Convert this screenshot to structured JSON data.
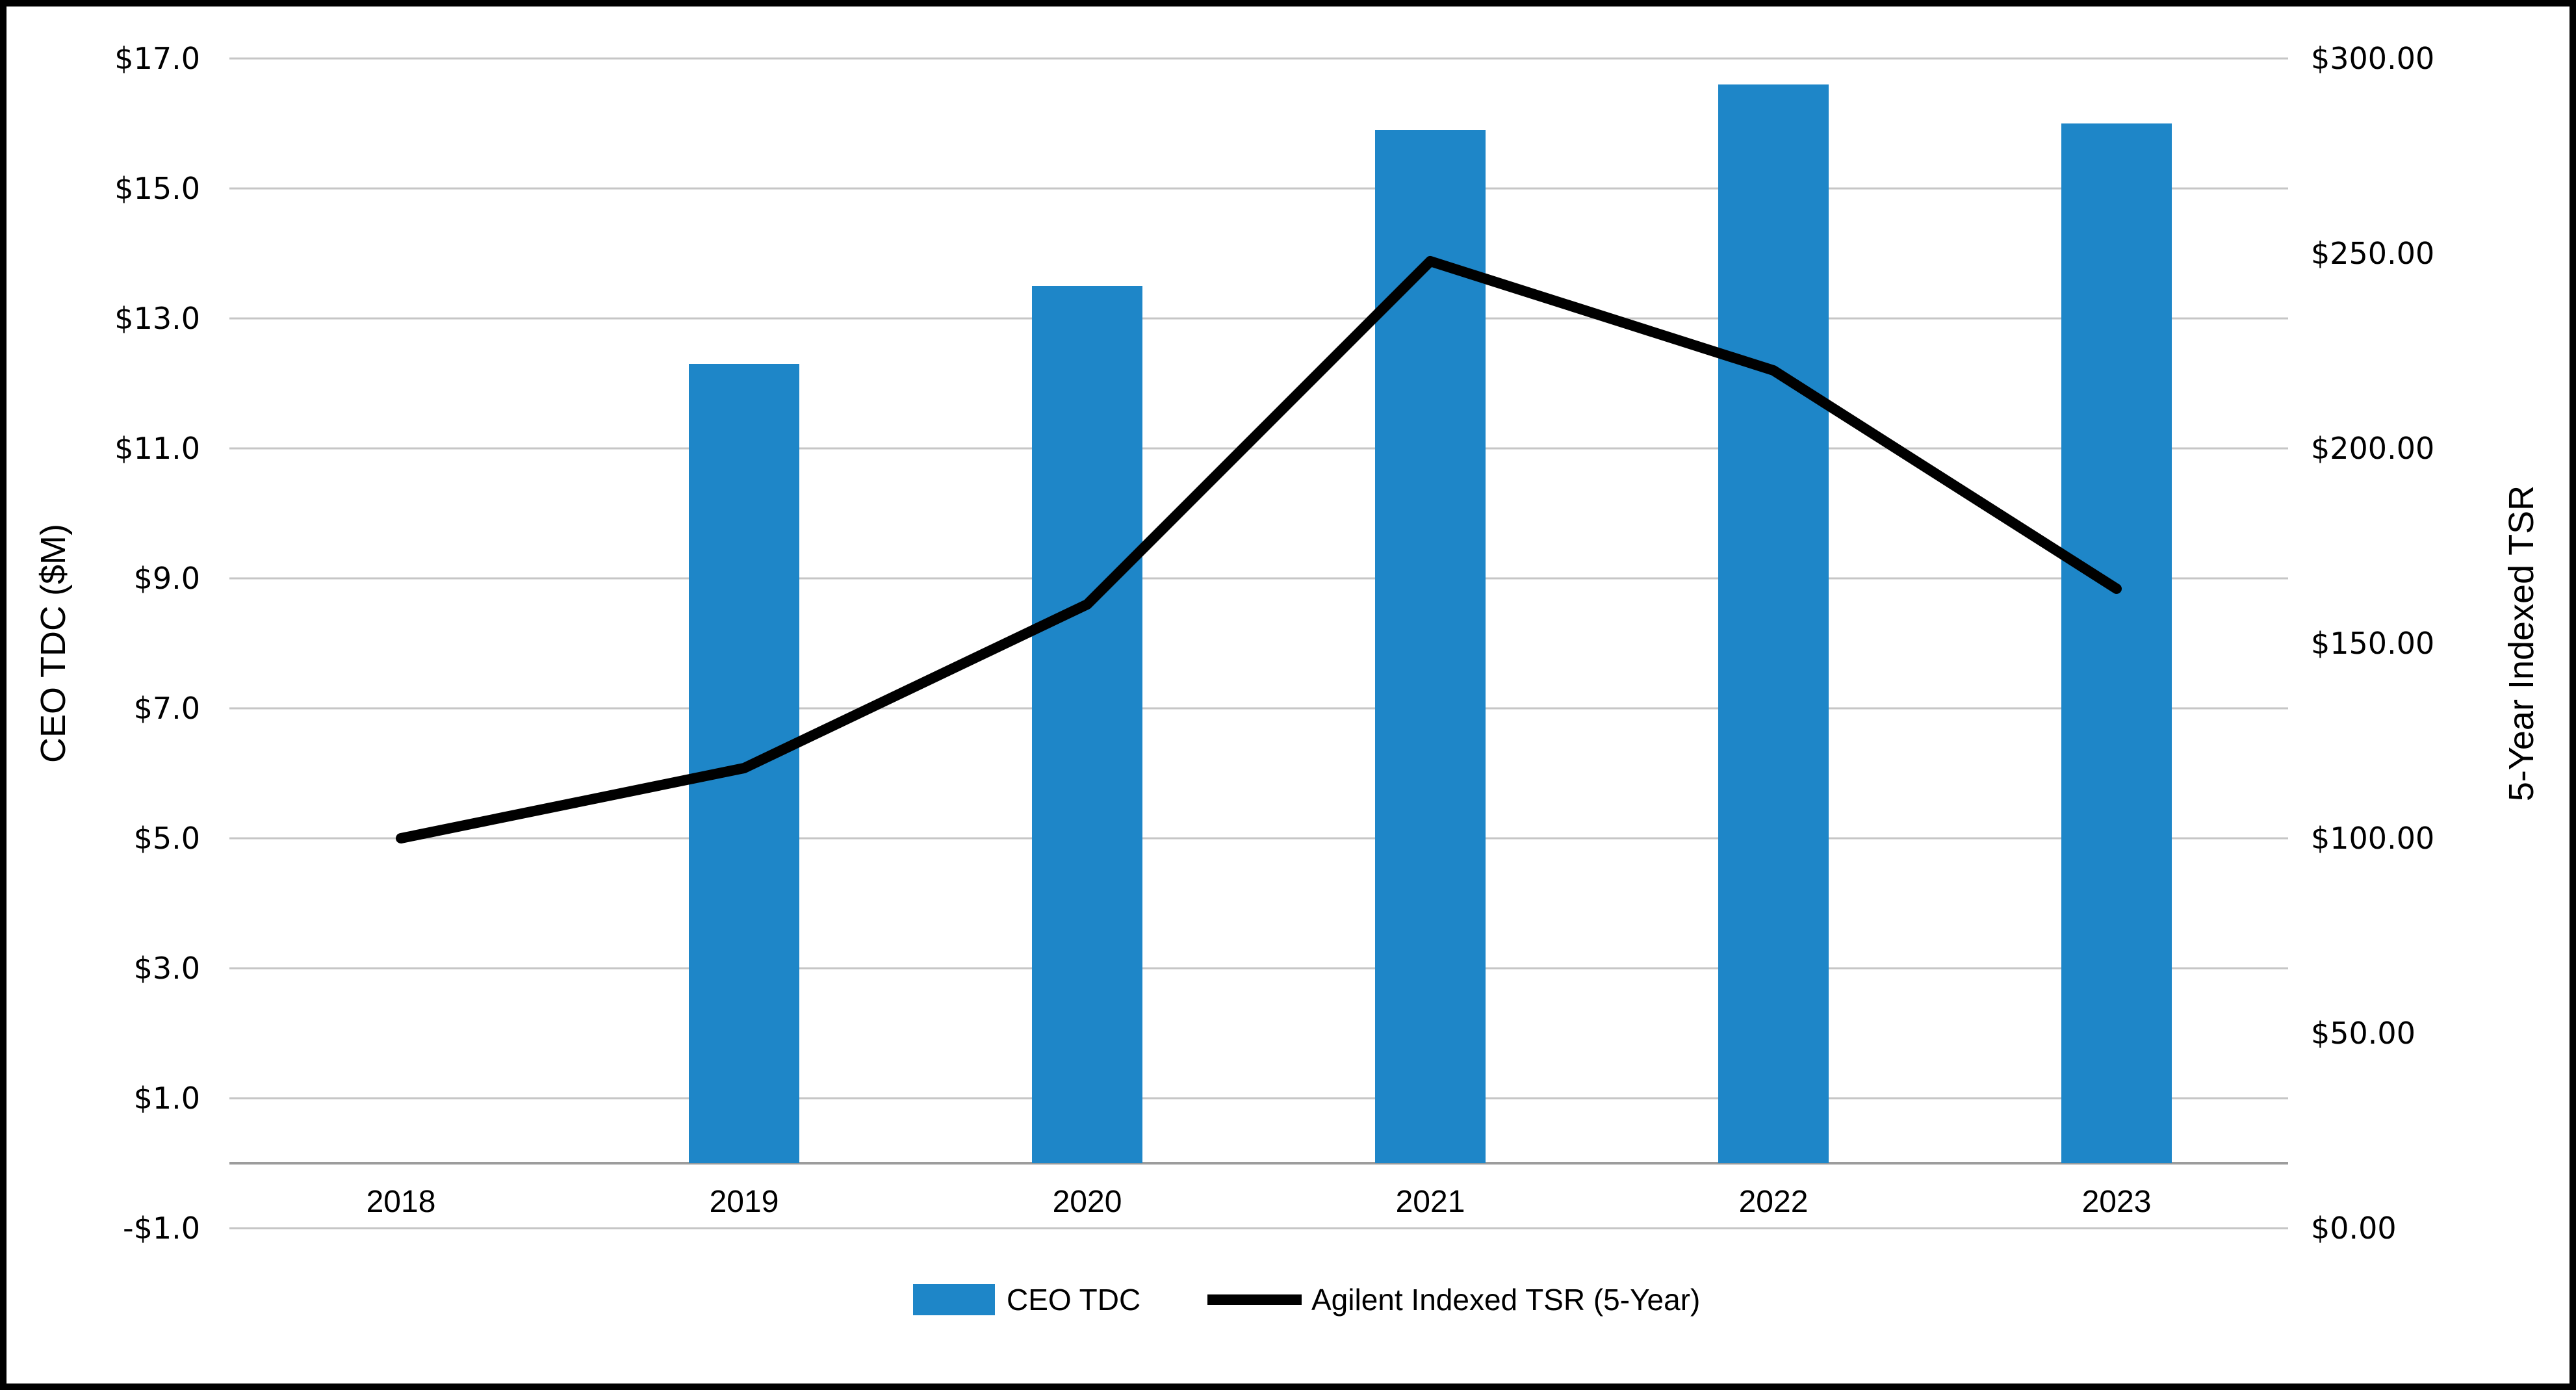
{
  "chart_data": {
    "type": "combo",
    "title": "",
    "categories": [
      "2018",
      "2019",
      "2020",
      "2021",
      "2022",
      "2023"
    ],
    "series": [
      {
        "name": "CEO TDC",
        "type": "bar",
        "axis": "left",
        "color": "#1E86C8",
        "values": [
          null,
          12.3,
          13.5,
          15.9,
          16.6,
          16.0
        ]
      },
      {
        "name": "Agilent Indexed TSR (5-Year)",
        "type": "line",
        "axis": "right",
        "color": "#000000",
        "values": [
          100,
          118,
          160,
          248,
          220,
          164
        ]
      }
    ],
    "left_axis": {
      "title": "CEO TDC ($M)",
      "min": -1.0,
      "max": 17.0,
      "step": 2.0,
      "ticks": [
        "$17.0",
        "$15.0",
        "$13.0",
        "$11.0",
        "$9.0",
        "$7.0",
        "$5.0",
        "$3.0",
        "$1.0",
        "-$1.0"
      ]
    },
    "right_axis": {
      "title": "5-Year Indexed TSR",
      "min": 0.0,
      "max": 300.0,
      "step": 50.0,
      "ticks": [
        "$300.00",
        "$250.00",
        "$200.00",
        "$150.00",
        "$100.00",
        "$50.00",
        "$0.00"
      ]
    },
    "legend": {
      "position": "bottom",
      "entries": [
        "CEO TDC",
        "Agilent Indexed TSR (5-Year)"
      ]
    },
    "grid": true,
    "colors": {
      "bar": "#1E86C8",
      "line": "#000000",
      "gridline": "#C6C6C6",
      "axis_line": "#9C9C9C",
      "border": "#000000",
      "background": "#FFFFFF"
    }
  }
}
